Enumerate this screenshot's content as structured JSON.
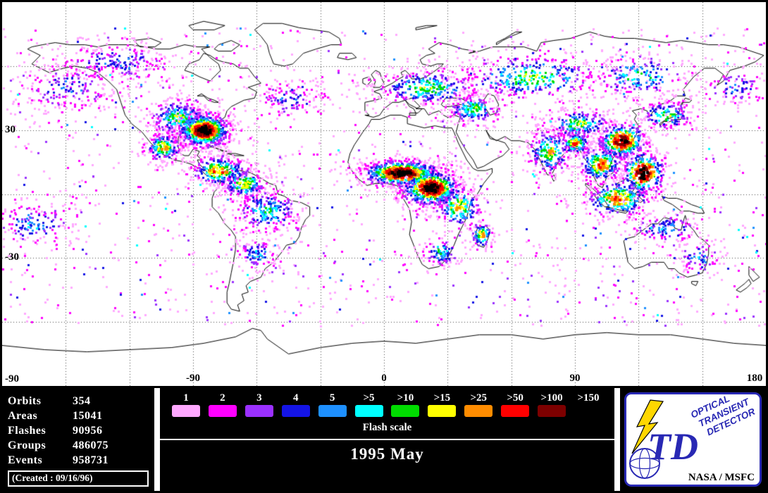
{
  "title": {
    "period": "1995 May"
  },
  "map": {
    "lat_labels": [
      {
        "text": "30",
        "lat": 30
      },
      {
        "text": "-30",
        "lat": -30
      },
      {
        "text": "-90",
        "lat": -90
      }
    ],
    "lon_labels": [
      {
        "text": "-90",
        "lon": -90
      },
      {
        "text": "0",
        "lon": 0
      },
      {
        "text": "90",
        "lon": 90
      },
      {
        "text": "180",
        "lon": 180
      }
    ],
    "grid_step_deg": 30,
    "scatter": {
      "n": 1500
    },
    "clusters": [
      {
        "lon": -85,
        "lat": 30,
        "sx": 7,
        "sy": 4.5,
        "n": 850,
        "peak": 12
      },
      {
        "lon": -97,
        "lat": 36,
        "sx": 8,
        "sy": 5,
        "n": 300,
        "peak": 7
      },
      {
        "lon": -104,
        "lat": 22,
        "sx": 5,
        "sy": 4,
        "n": 220,
        "peak": 8
      },
      {
        "lon": -78,
        "lat": 11,
        "sx": 8,
        "sy": 4,
        "n": 300,
        "peak": 9
      },
      {
        "lon": -66,
        "lat": 5,
        "sx": 6,
        "sy": 4,
        "n": 220,
        "peak": 8
      },
      {
        "lon": -55,
        "lat": -8,
        "sx": 9,
        "sy": 6,
        "n": 300,
        "peak": 6
      },
      {
        "lon": -60,
        "lat": -28,
        "sx": 6,
        "sy": 4,
        "n": 120,
        "peak": 5
      },
      {
        "lon": -150,
        "lat": 50,
        "sx": 14,
        "sy": 7,
        "n": 220,
        "peak": 4
      },
      {
        "lon": -125,
        "lat": 62,
        "sx": 16,
        "sy": 6,
        "n": 260,
        "peak": 4
      },
      {
        "lon": -45,
        "lat": 45,
        "sx": 9,
        "sy": 5,
        "n": 140,
        "peak": 4
      },
      {
        "lon": -165,
        "lat": -14,
        "sx": 12,
        "sy": 6,
        "n": 160,
        "peak": 5
      },
      {
        "lon": 8,
        "lat": 10,
        "sx": 11,
        "sy": 3.5,
        "n": 650,
        "peak": 12
      },
      {
        "lon": 22,
        "lat": 3,
        "sx": 8,
        "sy": 5,
        "n": 650,
        "peak": 12
      },
      {
        "lon": 35,
        "lat": -6,
        "sx": 6,
        "sy": 6,
        "n": 220,
        "peak": 8
      },
      {
        "lon": 46,
        "lat": -19,
        "sx": 3,
        "sy": 4,
        "n": 90,
        "peak": 8
      },
      {
        "lon": 27,
        "lat": -27,
        "sx": 5,
        "sy": 4,
        "n": 110,
        "peak": 6
      },
      {
        "lon": 20,
        "lat": 50,
        "sx": 14,
        "sy": 5,
        "n": 380,
        "peak": 7
      },
      {
        "lon": 42,
        "lat": 40,
        "sx": 7,
        "sy": 4,
        "n": 200,
        "peak": 7
      },
      {
        "lon": 70,
        "lat": 55,
        "sx": 22,
        "sy": 6,
        "n": 420,
        "peak": 7
      },
      {
        "lon": 120,
        "lat": 55,
        "sx": 14,
        "sy": 6,
        "n": 220,
        "peak": 6
      },
      {
        "lon": 92,
        "lat": 33,
        "sx": 9,
        "sy": 4,
        "n": 220,
        "peak": 7
      },
      {
        "lon": 78,
        "lat": 20,
        "sx": 6,
        "sy": 6,
        "n": 260,
        "peak": 8
      },
      {
        "lon": 90,
        "lat": 24,
        "sx": 4,
        "sy": 3,
        "n": 160,
        "peak": 9
      },
      {
        "lon": 102,
        "lat": 14,
        "sx": 6,
        "sy": 5,
        "n": 280,
        "peak": 9
      },
      {
        "lon": 112,
        "lat": 25,
        "sx": 7,
        "sy": 5,
        "n": 380,
        "peak": 11
      },
      {
        "lon": 122,
        "lat": 10,
        "sx": 6,
        "sy": 6,
        "n": 320,
        "peak": 12
      },
      {
        "lon": 110,
        "lat": -2,
        "sx": 9,
        "sy": 5,
        "n": 300,
        "peak": 9
      },
      {
        "lon": 133,
        "lat": 37,
        "sx": 7,
        "sy": 4,
        "n": 180,
        "peak": 7
      },
      {
        "lon": 133,
        "lat": -16,
        "sx": 9,
        "sy": 4,
        "n": 140,
        "peak": 5
      },
      {
        "lon": 148,
        "lat": -30,
        "sx": 6,
        "sy": 5,
        "n": 100,
        "peak": 5
      },
      {
        "lon": 165,
        "lat": 50,
        "sx": 10,
        "sy": 5,
        "n": 120,
        "peak": 4
      }
    ]
  },
  "stats": {
    "rows": [
      {
        "label": "Orbits",
        "value": "354"
      },
      {
        "label": "Areas",
        "value": "15041"
      },
      {
        "label": "Flashes",
        "value": "90956"
      },
      {
        "label": "Groups",
        "value": "486075"
      },
      {
        "label": "Events",
        "value": "958731"
      }
    ],
    "created": "(Created : 09/16/96)"
  },
  "legend": {
    "title": "Flash scale",
    "entries": [
      {
        "label": "1",
        "color": "#ffa8ff"
      },
      {
        "label": "2",
        "color": "#ff00ff"
      },
      {
        "label": "3",
        "color": "#9b30ff"
      },
      {
        "label": "4",
        "color": "#1414e6"
      },
      {
        "label": "5",
        "color": "#1e90ff"
      },
      {
        "label": ">5",
        "color": "#00ffff"
      },
      {
        "label": ">10",
        "color": "#00dc00"
      },
      {
        "label": ">15",
        "color": "#ffff00"
      },
      {
        "label": ">25",
        "color": "#ff8c00"
      },
      {
        "label": ">50",
        "color": "#ff0000"
      },
      {
        "label": ">100",
        "color": "#7d0000"
      },
      {
        "label": ">150",
        "color": "#000000"
      }
    ]
  },
  "logo": {
    "monogram": "TD",
    "accent": "#2828b4",
    "bolt_color": "#ffd700",
    "words": [
      "OPTICAL",
      "TRANSIENT",
      "DETECTOR"
    ],
    "agency": "NASA / MSFC"
  }
}
